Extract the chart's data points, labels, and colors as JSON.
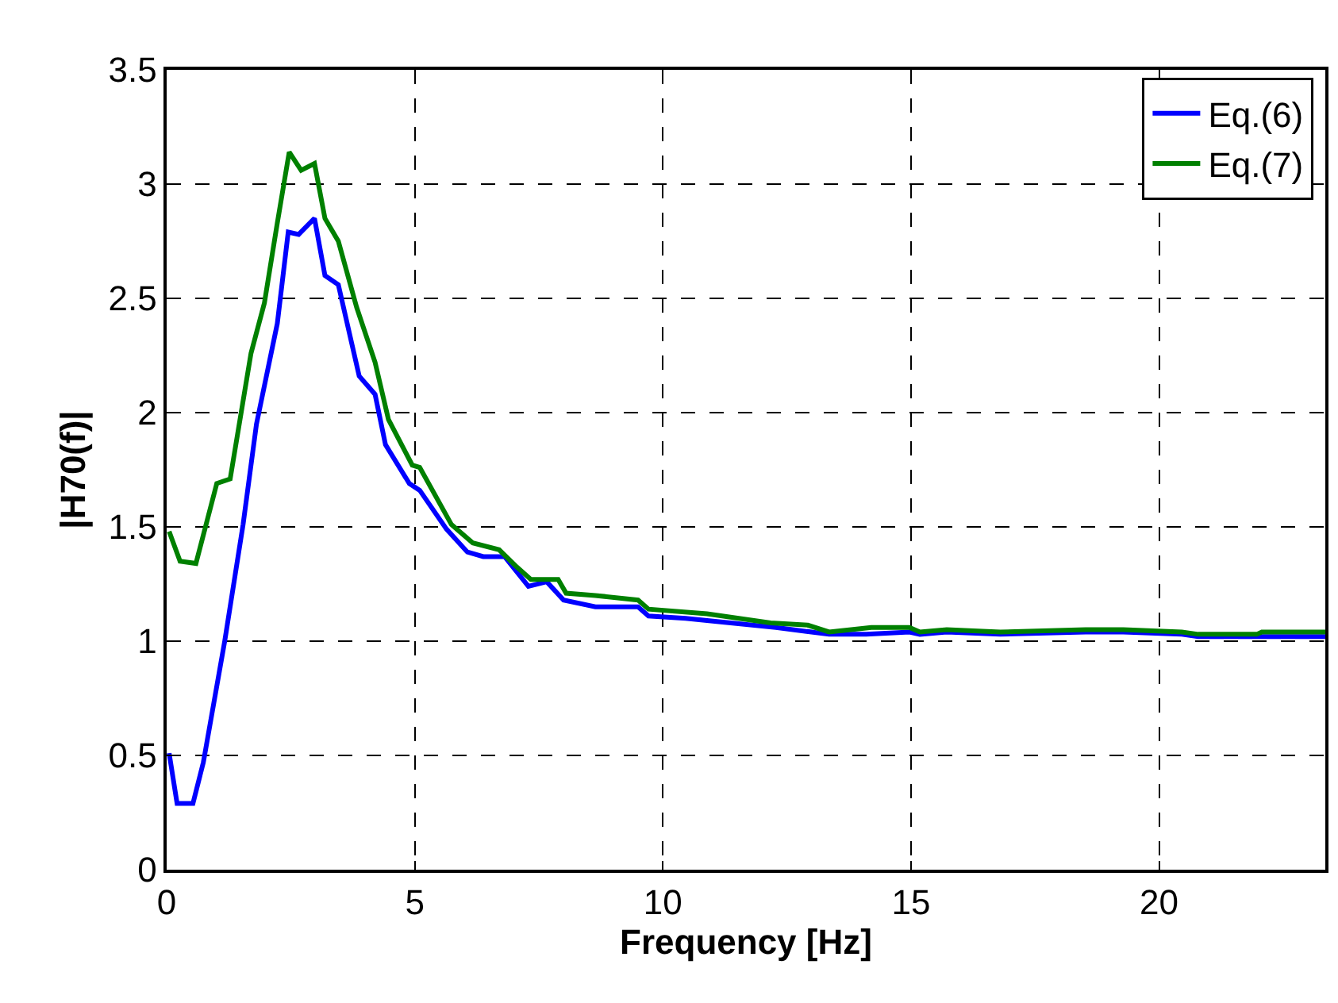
{
  "chart_data": {
    "type": "line",
    "xlabel": "Frequency [Hz]",
    "ylabel": "|H70(f)|",
    "xlim": [
      0,
      23.35
    ],
    "xticks": [
      0,
      5,
      10,
      15,
      20
    ],
    "ylim": [
      0,
      3.5
    ],
    "yticks": [
      0,
      0.5,
      1,
      1.5,
      2,
      2.5,
      3,
      3.5
    ],
    "grid": true,
    "legend": "top right",
    "line_style": "solid",
    "series": [
      {
        "name": "Eq.(6)",
        "color": "#0000ff",
        "x": [
          0.05,
          0.21,
          0.53,
          0.74,
          1.17,
          1.54,
          1.81,
          2.23,
          2.45,
          2.66,
          2.98,
          3.19,
          3.46,
          3.88,
          4.2,
          4.41,
          4.89,
          5.1,
          5.64,
          6.06,
          6.38,
          6.81,
          7.29,
          7.66,
          8.0,
          8.64,
          9.5,
          9.71,
          10.46,
          10.89,
          12.28,
          13.35,
          14.1,
          14.97,
          15.18,
          15.72,
          16.8,
          18.52,
          19.28,
          20.46,
          20.79,
          21.97,
          23.35
        ],
        "values": [
          0.51,
          0.29,
          0.29,
          0.47,
          1.0,
          1.51,
          1.95,
          2.39,
          2.79,
          2.78,
          2.85,
          2.6,
          2.56,
          2.16,
          2.08,
          1.86,
          1.69,
          1.66,
          1.49,
          1.39,
          1.37,
          1.37,
          1.24,
          1.26,
          1.18,
          1.15,
          1.15,
          1.11,
          1.1,
          1.09,
          1.06,
          1.03,
          1.03,
          1.04,
          1.03,
          1.04,
          1.03,
          1.04,
          1.04,
          1.03,
          1.02,
          1.02,
          1.02
        ]
      },
      {
        "name": "Eq.(7)",
        "color": "#008000",
        "x": [
          0.05,
          0.27,
          0.59,
          1.01,
          1.28,
          1.7,
          1.97,
          2.23,
          2.47,
          2.71,
          2.98,
          3.19,
          3.46,
          3.83,
          4.2,
          4.47,
          4.95,
          5.1,
          5.74,
          6.17,
          6.7,
          7.03,
          7.34,
          7.89,
          8.05,
          8.64,
          9.5,
          9.71,
          10.89,
          12.17,
          12.92,
          13.35,
          14.2,
          14.97,
          15.18,
          15.72,
          16.8,
          18.52,
          19.28,
          20.46,
          20.79,
          21.97,
          22.07,
          23.35
        ],
        "values": [
          1.48,
          1.35,
          1.34,
          1.69,
          1.71,
          2.26,
          2.48,
          2.83,
          3.14,
          3.06,
          3.09,
          2.85,
          2.75,
          2.46,
          2.22,
          1.97,
          1.77,
          1.76,
          1.51,
          1.43,
          1.4,
          1.33,
          1.27,
          1.27,
          1.21,
          1.2,
          1.18,
          1.14,
          1.12,
          1.08,
          1.07,
          1.04,
          1.06,
          1.06,
          1.04,
          1.05,
          1.04,
          1.05,
          1.05,
          1.04,
          1.03,
          1.03,
          1.04,
          1.04
        ]
      }
    ]
  }
}
